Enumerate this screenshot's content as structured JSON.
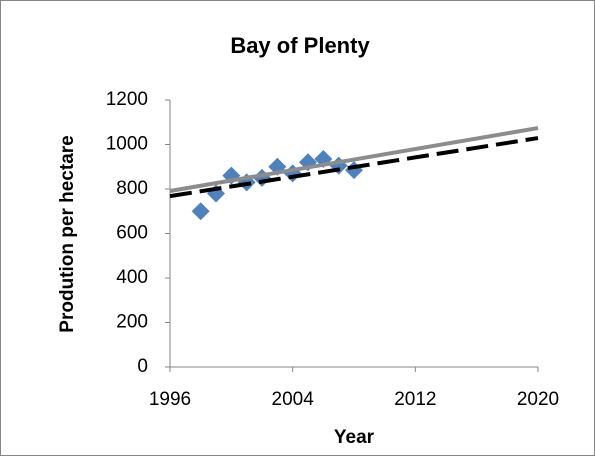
{
  "chart_data": {
    "type": "scatter",
    "title": "Bay of Plenty",
    "x_label": "Year",
    "y_label": "Prodution per hectare",
    "xlim": [
      1996,
      2020
    ],
    "xticks": [
      1996,
      2004,
      2012,
      2020
    ],
    "ylim": [
      0,
      1200
    ],
    "yticks": [
      0,
      200,
      400,
      600,
      800,
      1000,
      1200
    ],
    "grid": false,
    "series": [
      {
        "type": "scatter",
        "color": "#4f81bd",
        "x": [
          1998,
          1999,
          2000,
          2001,
          2002,
          2003,
          2004,
          2005,
          2006,
          2007,
          2008
        ],
        "values": [
          700,
          780,
          860,
          830,
          850,
          900,
          870,
          920,
          935,
          905,
          885
        ]
      },
      {
        "type": "line",
        "color": "#000000",
        "dash": "dashed",
        "x": [
          1996,
          2020
        ],
        "values": [
          768,
          1029
        ]
      },
      {
        "type": "line",
        "color": "#8c8c8c",
        "dash": "solid",
        "x": [
          1996,
          2020
        ],
        "values": [
          791,
          1074
        ]
      }
    ]
  }
}
